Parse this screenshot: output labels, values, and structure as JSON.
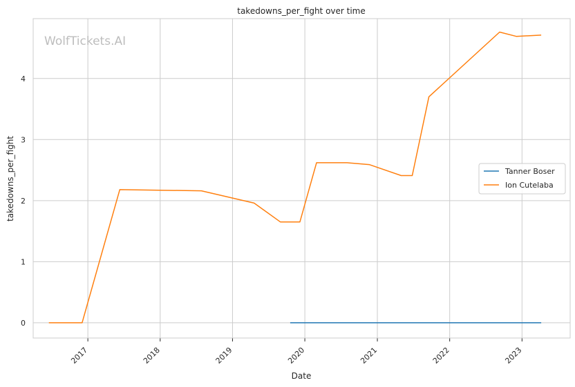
{
  "watermark": "WolfTickets.AI",
  "chart_data": {
    "type": "line",
    "title": "takedowns_per_fight over time",
    "xlabel": "Date",
    "ylabel": "takedowns_per_fight",
    "x_ticks": [
      "2017",
      "2018",
      "2019",
      "2020",
      "2021",
      "2022",
      "2023"
    ],
    "y_ticks": [
      "0",
      "1",
      "2",
      "3",
      "4"
    ],
    "xlim": [
      "2016-03-31",
      "2023-09-01"
    ],
    "ylim": [
      -0.25,
      4.98
    ],
    "grid": true,
    "legend_position": "right",
    "series": [
      {
        "name": "Tanner Boser",
        "color": "#1f77b4",
        "points": [
          [
            "2019-10-19",
            0
          ],
          [
            "2023-04-08",
            0
          ]
        ]
      },
      {
        "name": "Ion Cutelaba",
        "color": "#ff7f0e",
        "points": [
          [
            "2016-06-18",
            0
          ],
          [
            "2016-12-03",
            0
          ],
          [
            "2017-06-11",
            2.18
          ],
          [
            "2018-07-28",
            2.16
          ],
          [
            "2019-04-20",
            1.96
          ],
          [
            "2019-08-31",
            1.65
          ],
          [
            "2019-12-07",
            1.65
          ],
          [
            "2020-02-29",
            2.62
          ],
          [
            "2020-08-01",
            2.62
          ],
          [
            "2020-11-21",
            2.59
          ],
          [
            "2021-05-01",
            2.41
          ],
          [
            "2021-06-26",
            2.41
          ],
          [
            "2021-09-18",
            3.7
          ],
          [
            "2022-09-10",
            4.76
          ],
          [
            "2022-12-03",
            4.69
          ],
          [
            "2023-04-08",
            4.71
          ]
        ]
      }
    ]
  }
}
